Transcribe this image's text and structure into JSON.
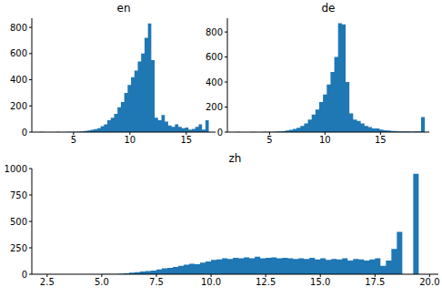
{
  "chart_data": [
    {
      "type": "histogram",
      "title": "en",
      "color": "#1f77b4",
      "bins": [
        2.0,
        2.3,
        2.6,
        2.9,
        3.2,
        3.5,
        3.8,
        4.1,
        4.4,
        4.7,
        5.0,
        5.3,
        5.6,
        5.9,
        6.2,
        6.5,
        6.8,
        7.1,
        7.4,
        7.7,
        8.0,
        8.3,
        8.6,
        8.9,
        9.2,
        9.5,
        9.8,
        10.1,
        10.4,
        10.7,
        11.0,
        11.3,
        11.6,
        11.9,
        12.2,
        12.5,
        12.8,
        13.1,
        13.4,
        13.7,
        14.0,
        14.3,
        14.6,
        14.9,
        15.2,
        15.5,
        15.8,
        16.1,
        16.4,
        16.7,
        17.0
      ],
      "counts": [
        1,
        0,
        0,
        0,
        0,
        1,
        0,
        0,
        1,
        1,
        2,
        3,
        5,
        8,
        12,
        18,
        22,
        30,
        45,
        60,
        90,
        110,
        140,
        190,
        230,
        300,
        360,
        420,
        470,
        540,
        600,
        720,
        830,
        550,
        110,
        90,
        130,
        80,
        50,
        40,
        60,
        40,
        30,
        35,
        20,
        25,
        40,
        60,
        20,
        90
      ],
      "xlim": [
        1.3,
        17.6
      ],
      "xticks": [
        5,
        10,
        15
      ],
      "ylim": [
        0,
        870
      ],
      "yticks": [
        0,
        200,
        400,
        600,
        800
      ]
    },
    {
      "type": "histogram",
      "title": "de",
      "color": "#1f77b4",
      "bins": [
        2.0,
        2.34,
        2.68,
        3.02,
        3.36,
        3.7,
        4.04,
        4.38,
        4.72,
        5.06,
        5.4,
        5.74,
        6.08,
        6.42,
        6.76,
        7.1,
        7.44,
        7.78,
        8.12,
        8.46,
        8.8,
        9.14,
        9.48,
        9.82,
        10.16,
        10.5,
        10.84,
        11.18,
        11.52,
        11.86,
        12.2,
        12.54,
        12.88,
        13.22,
        13.56,
        13.9,
        14.24,
        14.58,
        14.92,
        15.26,
        15.6,
        15.94,
        16.28,
        16.62,
        16.96,
        17.3,
        17.64,
        17.98,
        18.32,
        18.66,
        19.0
      ],
      "counts": [
        1,
        0,
        0,
        0,
        1,
        0,
        0,
        1,
        1,
        2,
        3,
        5,
        8,
        12,
        18,
        25,
        35,
        50,
        70,
        100,
        140,
        180,
        240,
        300,
        380,
        480,
        600,
        870,
        860,
        400,
        150,
        100,
        90,
        70,
        50,
        40,
        30,
        30,
        20,
        15,
        12,
        10,
        8,
        6,
        5,
        5,
        4,
        5,
        6,
        120
      ],
      "xlim": [
        1.2,
        19.4
      ],
      "xticks": [
        5,
        10,
        15
      ],
      "ylim": [
        0,
        910
      ],
      "yticks": [
        0,
        200,
        400,
        600,
        800
      ]
    },
    {
      "type": "histogram",
      "title": "zh",
      "color": "#1f77b4",
      "bins": [
        2.5,
        2.75,
        3.0,
        3.25,
        3.5,
        3.75,
        4.0,
        4.25,
        4.5,
        4.75,
        5.0,
        5.25,
        5.5,
        5.75,
        6.0,
        6.25,
        6.5,
        6.75,
        7.0,
        7.25,
        7.5,
        7.75,
        8.0,
        8.25,
        8.5,
        8.75,
        9.0,
        9.25,
        9.5,
        9.75,
        10.0,
        10.25,
        10.5,
        10.75,
        11.0,
        11.25,
        11.5,
        11.75,
        12.0,
        12.25,
        12.5,
        12.75,
        13.0,
        13.25,
        13.5,
        13.75,
        14.0,
        14.25,
        14.5,
        14.75,
        15.0,
        15.25,
        15.5,
        15.75,
        16.0,
        16.25,
        16.5,
        16.75,
        17.0,
        17.25,
        17.5,
        17.75,
        18.0,
        18.25,
        18.5,
        18.75,
        19.0,
        19.25,
        19.5,
        19.75
      ],
      "counts": [
        1,
        0,
        0,
        0,
        0,
        0,
        0,
        1,
        0,
        1,
        2,
        2,
        3,
        4,
        8,
        15,
        20,
        25,
        30,
        35,
        45,
        55,
        60,
        70,
        80,
        90,
        100,
        95,
        110,
        120,
        135,
        140,
        150,
        145,
        155,
        150,
        160,
        150,
        165,
        150,
        155,
        160,
        150,
        155,
        150,
        145,
        150,
        145,
        155,
        140,
        150,
        135,
        145,
        140,
        150,
        130,
        145,
        140,
        130,
        140,
        150,
        80,
        130,
        240,
        400,
        0,
        0,
        950,
        0
      ],
      "xlim": [
        1.8,
        20.4
      ],
      "xticks": [
        2.5,
        {
          "value": 5,
          "label": "5.0"
        },
        7.5,
        {
          "value": 10,
          "label": "10.0"
        },
        12.5,
        {
          "value": 15,
          "label": "15.0"
        },
        17.5,
        {
          "value": 20,
          "label": "20.0"
        }
      ],
      "ylim": [
        0,
        1000
      ],
      "yticks": [
        0,
        250,
        500,
        750,
        1000
      ]
    }
  ]
}
